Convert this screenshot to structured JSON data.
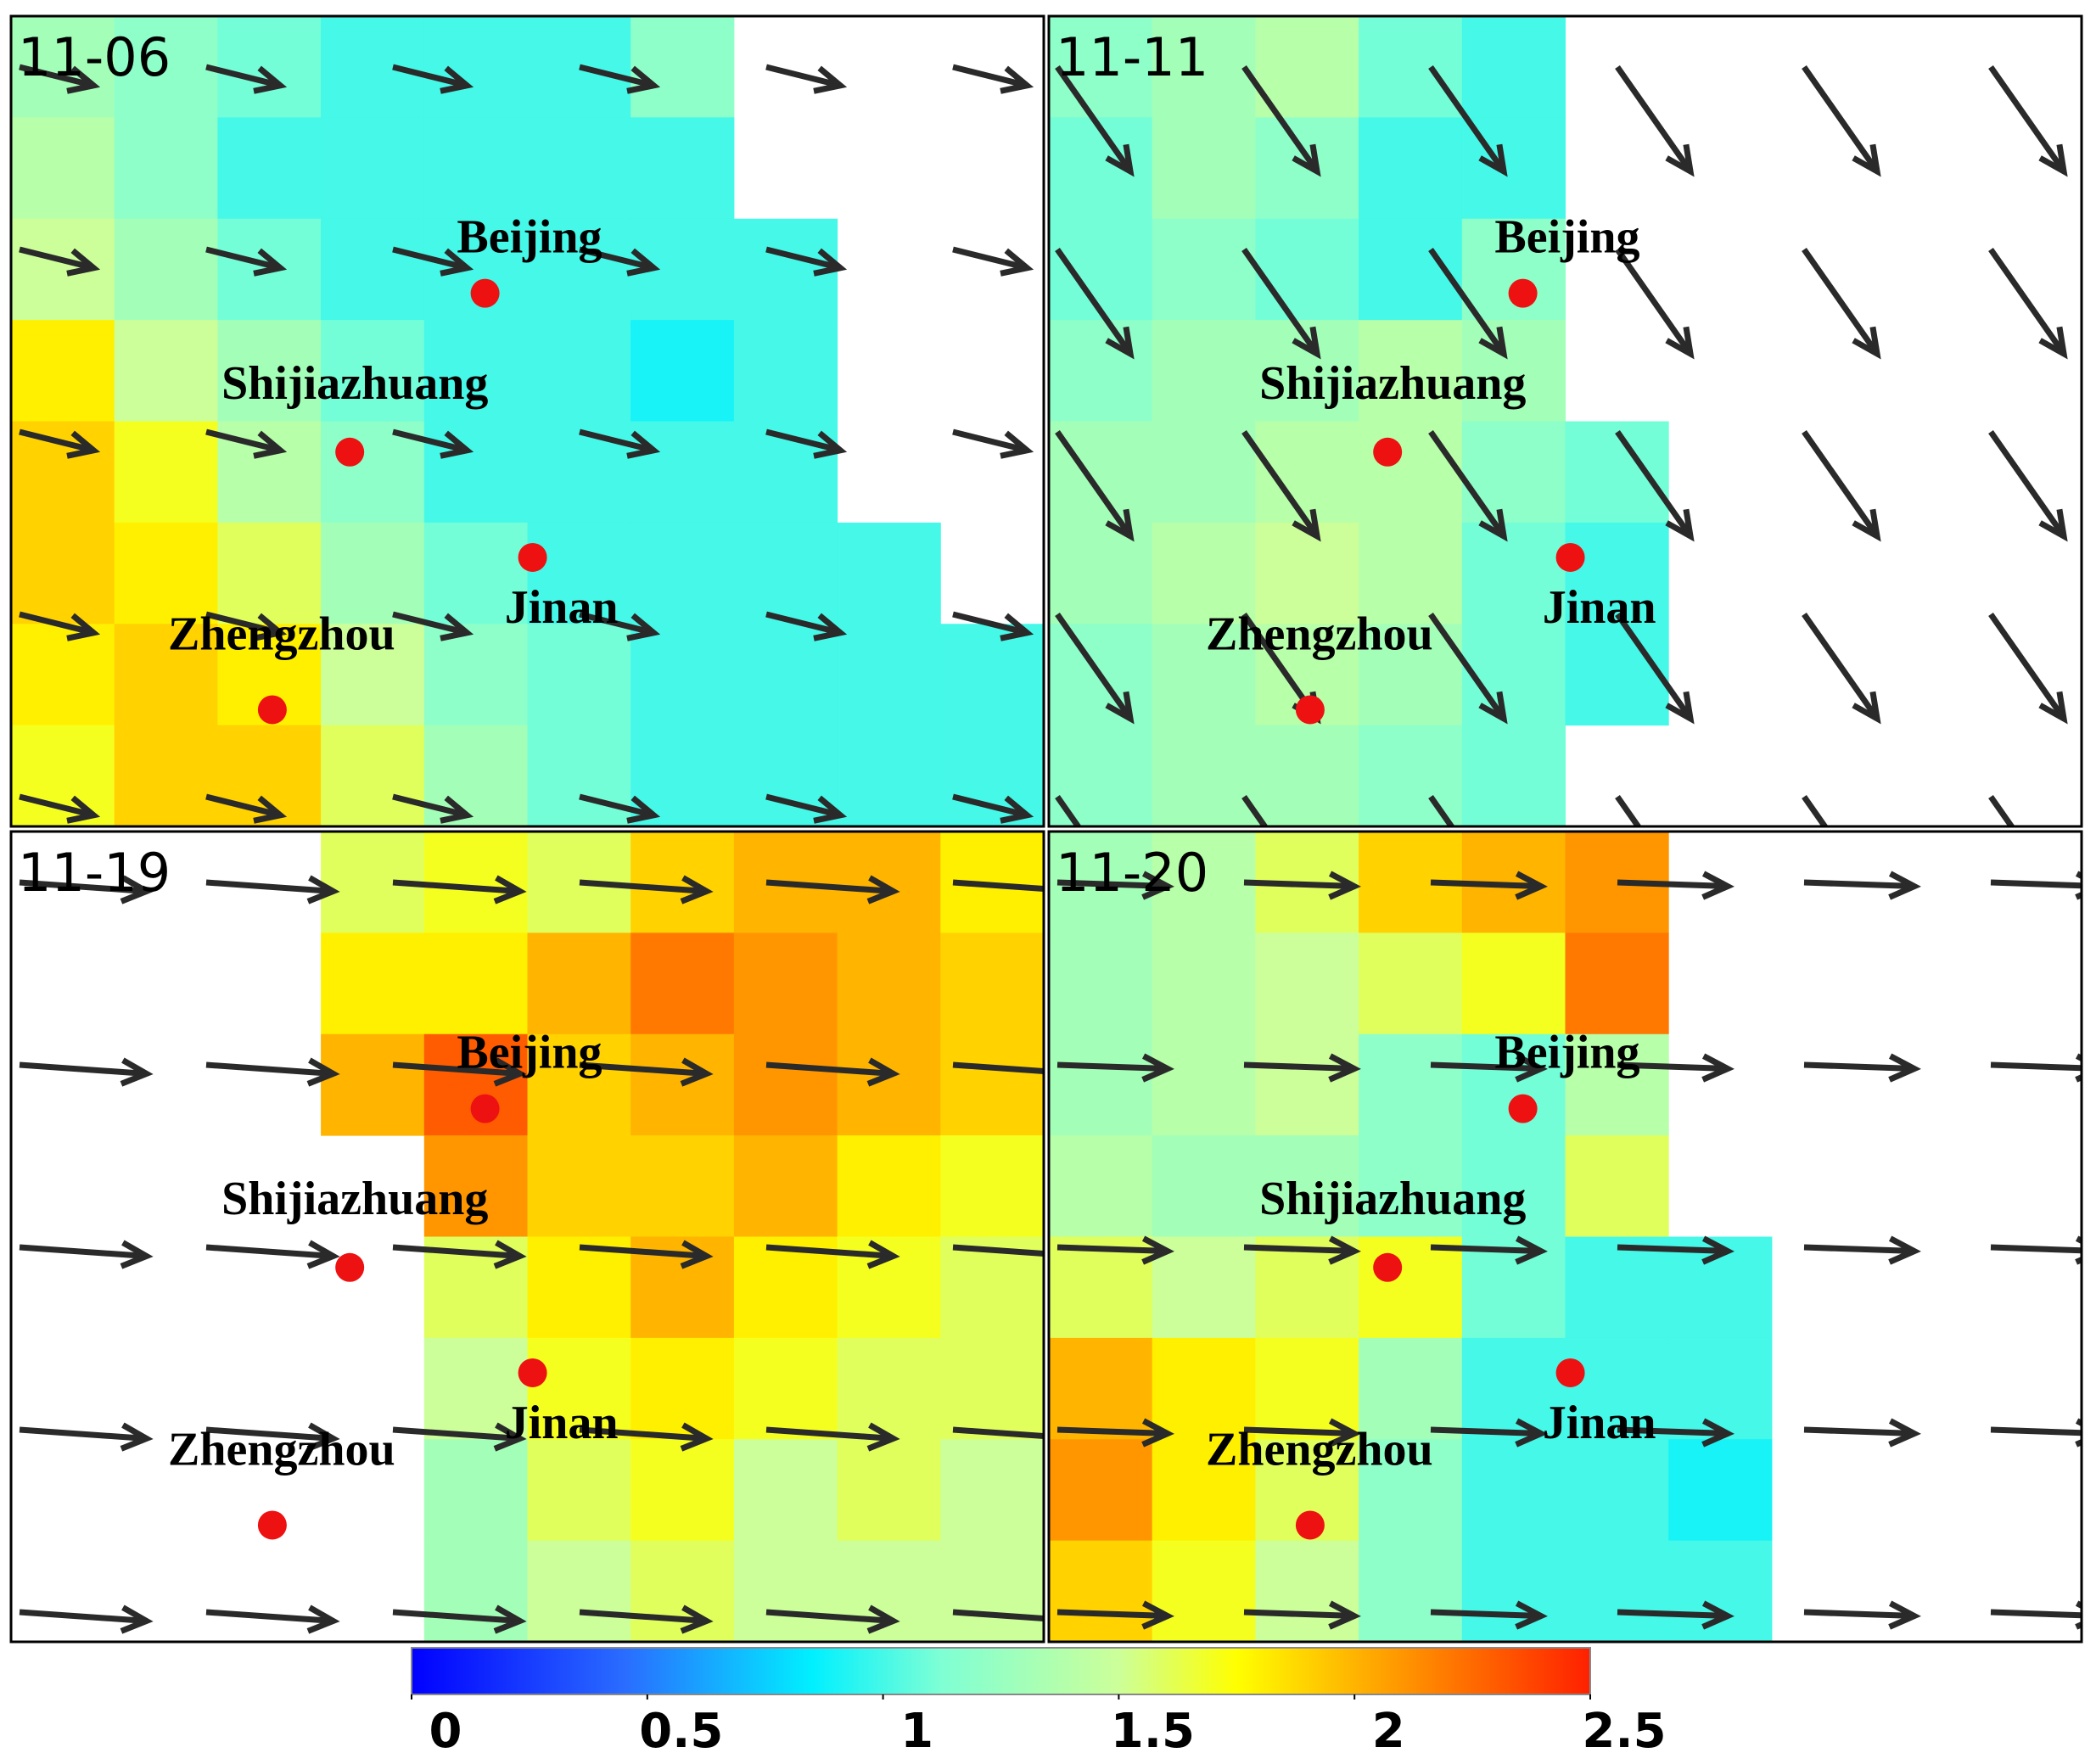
{
  "chart_data": {
    "type": "heatmap",
    "panels": [
      {
        "title": "11-06",
        "grid": [
          [
            1.3,
            1.2,
            1.1,
            1.0,
            1.0,
            1.0,
            1.2,
            null,
            null,
            null
          ],
          [
            1.4,
            1.2,
            1.0,
            1.0,
            1.0,
            1.0,
            1.0,
            null,
            null,
            null
          ],
          [
            1.5,
            1.3,
            1.1,
            1.0,
            1.0,
            1.0,
            1.0,
            1.0,
            null,
            null
          ],
          [
            1.8,
            1.5,
            1.3,
            1.1,
            1.0,
            1.0,
            0.9,
            1.0,
            null,
            null
          ],
          [
            1.9,
            1.7,
            1.4,
            1.2,
            1.0,
            1.0,
            1.0,
            1.0,
            null,
            null
          ],
          [
            1.9,
            1.8,
            1.6,
            1.3,
            1.1,
            1.0,
            1.0,
            1.0,
            1.0,
            null
          ],
          [
            1.8,
            1.9,
            1.8,
            1.5,
            1.2,
            1.1,
            1.0,
            1.0,
            1.0,
            1.0
          ],
          [
            1.7,
            1.9,
            1.9,
            1.6,
            1.3,
            1.1,
            1.0,
            1.0,
            1.0,
            1.0
          ]
        ]
      },
      {
        "title": "11-11",
        "grid": [
          [
            1.2,
            1.3,
            1.4,
            1.1,
            1.0,
            null,
            null,
            null,
            null,
            null
          ],
          [
            1.1,
            1.3,
            1.2,
            1.0,
            1.0,
            null,
            null,
            null,
            null,
            null
          ],
          [
            1.1,
            1.2,
            1.1,
            1.0,
            1.2,
            null,
            null,
            null,
            null,
            null
          ],
          [
            1.2,
            1.3,
            1.3,
            1.4,
            1.3,
            null,
            null,
            null,
            null,
            null
          ],
          [
            1.3,
            1.3,
            1.4,
            1.4,
            1.2,
            1.1,
            null,
            null,
            null,
            null
          ],
          [
            1.3,
            1.4,
            1.5,
            1.4,
            1.1,
            1.0,
            null,
            null,
            null,
            null
          ],
          [
            1.2,
            1.3,
            1.4,
            1.3,
            1.1,
            1.0,
            null,
            null,
            null,
            null
          ],
          [
            1.2,
            1.3,
            1.3,
            1.2,
            1.1,
            null,
            null,
            null,
            null,
            null
          ]
        ]
      },
      {
        "title": "11-19",
        "grid": [
          [
            null,
            null,
            null,
            1.6,
            1.7,
            1.6,
            1.9,
            2.0,
            2.0,
            1.8
          ],
          [
            null,
            null,
            null,
            1.8,
            1.8,
            2.0,
            2.2,
            2.1,
            2.0,
            1.9
          ],
          [
            null,
            null,
            null,
            2.0,
            2.3,
            1.9,
            2.0,
            2.1,
            2.0,
            1.9
          ],
          [
            null,
            null,
            null,
            null,
            2.1,
            1.9,
            1.9,
            2.0,
            1.8,
            1.7
          ],
          [
            null,
            null,
            null,
            null,
            1.6,
            1.8,
            2.0,
            1.8,
            1.7,
            1.6
          ],
          [
            null,
            null,
            null,
            null,
            1.5,
            1.7,
            1.8,
            1.7,
            1.6,
            1.6
          ],
          [
            null,
            null,
            null,
            null,
            1.3,
            1.6,
            1.7,
            1.5,
            1.6,
            1.5
          ],
          [
            null,
            null,
            null,
            null,
            1.3,
            1.5,
            1.6,
            1.5,
            1.5,
            1.5
          ]
        ]
      },
      {
        "title": "11-20",
        "grid": [
          [
            1.3,
            1.4,
            1.6,
            1.9,
            2.0,
            2.1,
            null,
            null,
            null,
            null
          ],
          [
            1.3,
            1.4,
            1.5,
            1.6,
            1.7,
            2.2,
            null,
            null,
            null,
            null
          ],
          [
            1.3,
            1.4,
            1.5,
            1.2,
            1.1,
            1.4,
            null,
            null,
            null,
            null
          ],
          [
            1.4,
            1.3,
            1.3,
            1.2,
            1.1,
            1.6,
            null,
            null,
            null,
            null
          ],
          [
            1.6,
            1.5,
            1.6,
            1.7,
            1.1,
            1.0,
            1.0,
            null,
            null,
            null
          ],
          [
            2.0,
            1.8,
            1.7,
            1.3,
            1.0,
            1.0,
            1.0,
            null,
            null,
            null
          ],
          [
            2.1,
            1.8,
            1.6,
            1.2,
            1.0,
            1.0,
            0.9,
            null,
            null,
            null
          ],
          [
            1.9,
            1.7,
            1.5,
            1.2,
            1.0,
            1.0,
            1.0,
            null,
            null,
            null
          ]
        ]
      }
    ],
    "cities": [
      "Beijing",
      "Shijiazhuang",
      "Jinan",
      "Zhengzhou"
    ],
    "colorbar": {
      "lim": [
        0,
        2.5
      ],
      "ticks": [
        0,
        0.5,
        1,
        1.5,
        2,
        2.5
      ]
    }
  }
}
